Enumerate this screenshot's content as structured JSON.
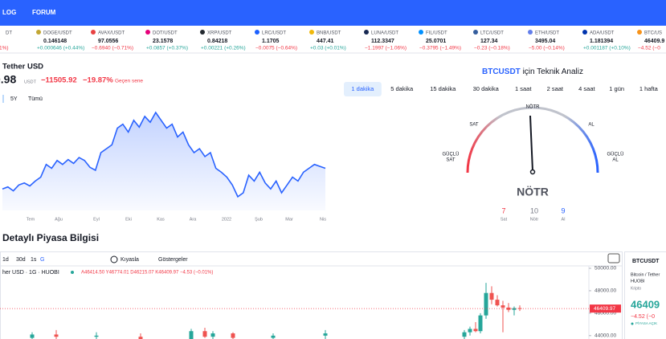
{
  "nav": [
    "LOG",
    "FORUM"
  ],
  "ticker": [
    {
      "symbol": "DT",
      "change": "1%)"
    },
    {
      "symbol": "DOGE/USDT",
      "price": "0.146148",
      "change": "+0.000646 (+0.44%)"
    },
    {
      "symbol": "AVAX/USDT",
      "price": "97.0556",
      "change": "−0.6940 (−0.71%)"
    },
    {
      "symbol": "DOT/USDT",
      "price": "23.1578",
      "change": "+0.0857 (+0.37%)"
    },
    {
      "symbol": "XRP/USDT",
      "price": "0.84218",
      "change": "+0.00221 (+0.26%)"
    },
    {
      "symbol": "LRC/USDT",
      "price": "1.1705",
      "change": "−0.0075 (−0.64%)"
    },
    {
      "symbol": "BNB/USDT",
      "price": "447.41",
      "change": "+0.03 (+0.01%)"
    },
    {
      "symbol": "LUNA/USDT",
      "price": "112.3347",
      "change": "−1.1997 (−1.06%)"
    },
    {
      "symbol": "FIL/USDT",
      "price": "25.0701",
      "change": "−0.3795 (−1.49%)"
    },
    {
      "symbol": "LTC/USDT",
      "price": "127.34",
      "change": "−0.23 (−0.18%)"
    },
    {
      "symbol": "ETH/USDT",
      "price": "3495.04",
      "change": "−5.00 (−0.14%)"
    },
    {
      "symbol": "ADA/USDT",
      "price": "1.181394",
      "change": "+0.001187 (+0.10%)"
    },
    {
      "symbol": "BTC/US",
      "price": "46409.9",
      "change": "−4.52 (−0"
    }
  ],
  "overview": {
    "name": "Tether USD",
    "price": "0.98",
    "unit": "USDT",
    "change": "−11505.92",
    "change_pct": "−19.87%",
    "period": "Geçen sene",
    "ranges": [
      "5Y",
      "Tümü"
    ],
    "chart": {
      "type": "area",
      "color": "#2962ff",
      "ylim": [
        0,
        100
      ],
      "values": [
        22,
        24,
        20,
        26,
        28,
        25,
        30,
        34,
        47,
        43,
        51,
        47,
        52,
        48,
        54,
        51,
        44,
        41,
        59,
        63,
        67,
        84,
        88,
        80,
        92,
        85,
        96,
        90,
        100,
        92,
        84,
        88,
        75,
        80,
        67,
        59,
        63,
        55,
        59,
        43,
        39,
        34,
        26,
        14,
        18,
        36,
        30,
        39,
        28,
        22,
        30,
        18,
        26,
        34,
        30,
        39,
        43,
        47,
        45,
        43
      ],
      "x_labels": [
        "Tem",
        "Ağu",
        "Eyl",
        "Eki",
        "Kas",
        "Ara",
        "2022",
        "Şub",
        "Mar",
        "Nis"
      ]
    }
  },
  "technical": {
    "symbol": "BTCUSDT",
    "title": "için Teknik Analiz",
    "intervals": [
      "1 dakika",
      "5 dakika",
      "15 dakika",
      "30 dakika",
      "1 saat",
      "2 saat",
      "4 saat",
      "1 gün",
      "1 hafta",
      "1 a"
    ],
    "gauge": {
      "top": "NÖTR",
      "sell": "SAT",
      "buy": "AL",
      "strong_sell": [
        "GÜÇLÜ",
        "SAT"
      ],
      "strong_buy": [
        "GÜÇLÜ",
        "AL"
      ]
    },
    "summary": "NÖTR",
    "counts": [
      {
        "value": 7,
        "label": "Sat"
      },
      {
        "value": 10,
        "label": "Nötr"
      },
      {
        "value": 9,
        "label": "Al"
      }
    ]
  },
  "market": {
    "title": "Detaylı Piyasa Bilgisi",
    "toolbar": [
      "1d",
      "30d",
      "1s",
      "G",
      "Kıyasla",
      "Göstergeler"
    ],
    "legend_symbol": "her USD · 1G · HUOBI",
    "legend_ohlc": "A46414.50 Y46774.01 D46215.07 K46409.97 −4.53 (−0.01%)",
    "chart": {
      "type": "candlestick",
      "ylim": [
        43700,
        50500
      ],
      "yticks": [
        {
          "value": 50000,
          "label": "50000.00"
        },
        {
          "value": 48000,
          "label": "48000.00"
        },
        {
          "value": 46000,
          "label": "46000.00"
        },
        {
          "value": 44000,
          "label": "44000.00"
        }
      ],
      "last": {
        "value": 46409.97,
        "label": "46409.97"
      },
      "up_color": "#26a69a",
      "down_color": "#ef5350",
      "candles": [
        [
          43800,
          44300,
          43500,
          44100
        ],
        [
          44100,
          44500,
          43700,
          43900
        ],
        [
          43900,
          44300,
          43600,
          44000
        ],
        [
          43900,
          44200,
          43500,
          43700
        ],
        [
          43700,
          44600,
          43600,
          44400
        ],
        [
          44400,
          44700,
          43800,
          43900
        ],
        [
          43900,
          44400,
          43700,
          44200
        ],
        [
          44200,
          44300,
          43600,
          43800
        ],
        [
          43800,
          44200,
          43500,
          44000
        ],
        [
          44000,
          44500,
          43700,
          44200
        ],
        [
          43900,
          44500,
          43700,
          44300
        ],
        [
          44300,
          44800,
          44000,
          44600
        ],
        [
          44600,
          45200,
          44300,
          44400
        ],
        [
          44400,
          46000,
          44200,
          45800
        ],
        [
          45800,
          48700,
          45500,
          47800
        ],
        [
          47800,
          48400,
          46800,
          47200
        ],
        [
          47200,
          47600,
          46600,
          46700
        ],
        [
          46700,
          47100,
          44300,
          46500
        ],
        [
          46500,
          46900,
          46100,
          46300
        ],
        [
          46300,
          46600,
          45800,
          46450
        ],
        [
          46450,
          46700,
          46200,
          46410
        ]
      ]
    }
  },
  "side": {
    "symbol": "BTCUSDT",
    "name": "Bitcoin / Tether",
    "exchange": "HUOBI",
    "category": "Kripto",
    "price": "46409",
    "change": "−4.52 (−0",
    "status": "PİYASA AÇIK"
  }
}
